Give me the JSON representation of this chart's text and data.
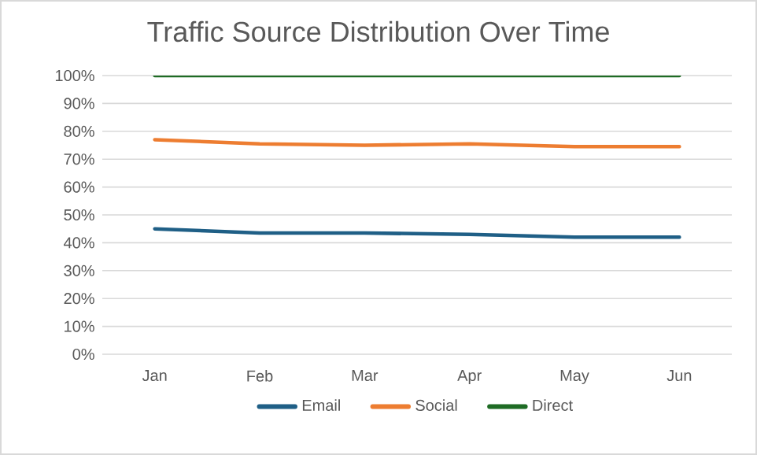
{
  "chart_data": {
    "type": "line",
    "title": "Traffic Source Distribution Over Time",
    "categories": [
      "Jan",
      "Feb",
      "Mar",
      "Apr",
      "May",
      "Jun"
    ],
    "series": [
      {
        "name": "Email",
        "color": "#1f5f86",
        "values": [
          45,
          43.5,
          43.5,
          43,
          42,
          42
        ]
      },
      {
        "name": "Social",
        "color": "#ed7d31",
        "values": [
          77,
          75.5,
          75,
          75.5,
          74.5,
          74.5
        ]
      },
      {
        "name": "Direct",
        "color": "#1e6b24",
        "values": [
          100,
          100,
          100,
          100,
          100,
          100
        ]
      }
    ],
    "ylim": [
      0,
      100
    ],
    "yticks": [
      {
        "value": 0,
        "label": "0%"
      },
      {
        "value": 10,
        "label": "10%"
      },
      {
        "value": 20,
        "label": "20%"
      },
      {
        "value": 30,
        "label": "30%"
      },
      {
        "value": 40,
        "label": "40%"
      },
      {
        "value": 50,
        "label": "50%"
      },
      {
        "value": 60,
        "label": "60%"
      },
      {
        "value": 70,
        "label": "70%"
      },
      {
        "value": 80,
        "label": "80%"
      },
      {
        "value": 90,
        "label": "90%"
      },
      {
        "value": 100,
        "label": "100%"
      }
    ],
    "grid": "y",
    "legend": "bottom",
    "marker": "none",
    "line_style": "solid"
  }
}
